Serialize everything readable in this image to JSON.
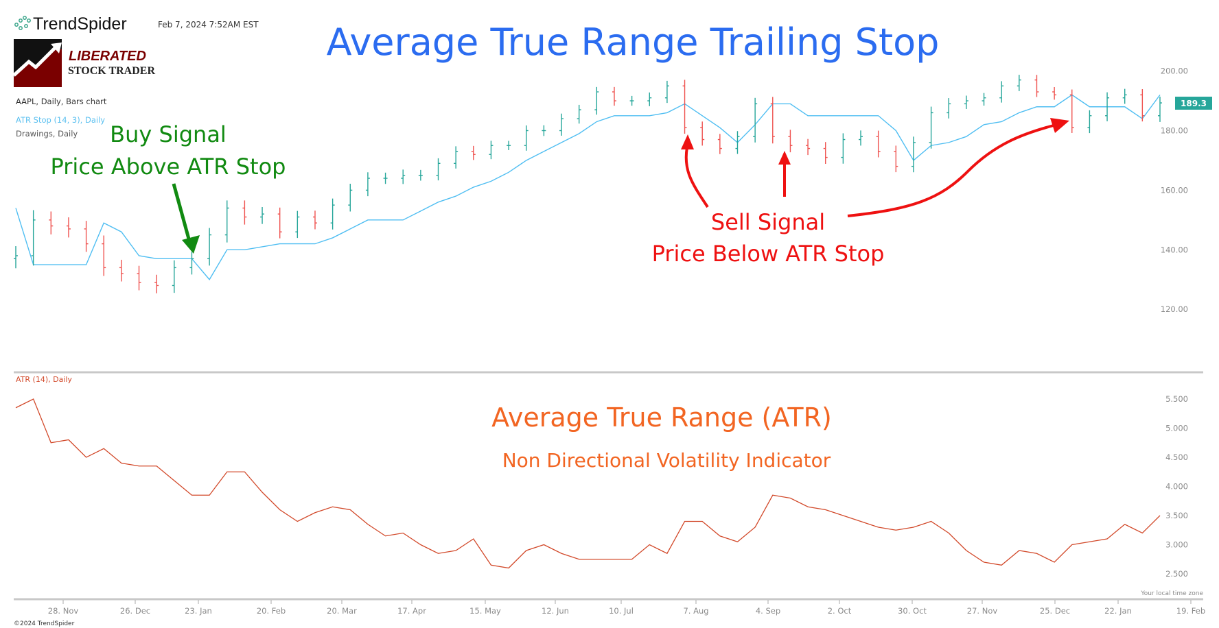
{
  "header": {
    "brand": "TrendSpider",
    "timestamp": "Feb 7, 2024 7:52AM EST",
    "logo_line1": "LIBERATED",
    "logo_line2": "STOCK TRADER",
    "title": "Average True Range Trailing Stop",
    "copyright": "©2024 TrendSpider"
  },
  "legend": {
    "main": "AAPL, Daily, Bars chart",
    "atr_stop": "ATR Stop (14, 3), Daily",
    "drawings": "Drawings, Daily",
    "atr": "ATR (14), Daily"
  },
  "annotations": {
    "buy_title": "Buy Signal",
    "buy_sub": "Price Above ATR Stop",
    "sell_title": "Sell Signal",
    "sell_sub": "Price Below ATR Stop",
    "atr_title": "Average True Range (ATR)",
    "atr_sub": "Non Directional Volatility Indicator"
  },
  "colors": {
    "title": "#2b6cf0",
    "buy": "#118a11",
    "sell": "#ee1111",
    "atr_text": "#f26522",
    "bar_up": "#26a69a",
    "bar_down": "#ef5350",
    "atr_stop": "#4fbef2",
    "atr_line": "#d2492a"
  },
  "chart_data": [
    {
      "type": "bar",
      "name": "AAPL, Daily, Bars chart",
      "note_sampling": "weekly closes",
      "x_tick_labels": [
        "28. Nov",
        "26. Dec",
        "23. Jan",
        "20. Feb",
        "20. Mar",
        "17. Apr",
        "15. May",
        "12. Jun",
        "10. Jul",
        "7. Aug",
        "4. Sep",
        "2. Oct",
        "30. Oct",
        "27. Nov",
        "25. Dec",
        "22. Jan",
        "19. Feb"
      ],
      "y_tick_labels": [
        "200.00",
        "180.00",
        "160.00",
        "140.00",
        "120.00"
      ],
      "ylim": [
        100,
        200
      ],
      "last_price": "189.3",
      "close": [
        138,
        150,
        148,
        147,
        142,
        134,
        132,
        129,
        128,
        134,
        137,
        145,
        154,
        151,
        152,
        146,
        151,
        149,
        155,
        160,
        164,
        164,
        165,
        165,
        169,
        173,
        172,
        175,
        175,
        180,
        180,
        184,
        187,
        193,
        190,
        190,
        191,
        195,
        181,
        177,
        174,
        178,
        189,
        178,
        175,
        174,
        171,
        177,
        178,
        173,
        168,
        176,
        186,
        189,
        190,
        191,
        195,
        197,
        193,
        192,
        181,
        185,
        191,
        192,
        185,
        189.3
      ],
      "atr_stop": [
        154,
        135,
        135,
        135,
        135,
        149,
        146,
        138,
        137,
        137,
        137,
        130,
        140,
        140,
        141,
        142,
        142,
        142,
        144,
        147,
        150,
        150,
        150,
        153,
        156,
        158,
        161,
        163,
        166,
        170,
        173,
        176,
        179,
        183,
        185,
        185,
        185,
        186,
        189,
        185,
        181,
        176,
        182,
        189,
        189,
        185,
        185,
        185,
        185,
        185,
        180,
        170,
        175,
        176,
        178,
        182,
        183,
        186,
        188,
        188,
        192,
        188,
        188,
        188,
        184,
        192
      ]
    },
    {
      "type": "line",
      "name": "ATR (14), Daily",
      "y_tick_labels": [
        "5.500",
        "5.000",
        "4.500",
        "4.000",
        "3.500",
        "3.000",
        "2.500"
      ],
      "ylim": [
        2.3,
        5.8
      ],
      "values": [
        5.35,
        5.5,
        4.75,
        4.8,
        4.5,
        4.65,
        4.4,
        4.35,
        4.35,
        4.1,
        3.85,
        3.85,
        4.25,
        4.25,
        3.9,
        3.6,
        3.4,
        3.55,
        3.65,
        3.6,
        3.35,
        3.15,
        3.2,
        3.0,
        2.85,
        2.9,
        3.1,
        2.65,
        2.6,
        2.9,
        3.0,
        2.85,
        2.75,
        2.75,
        2.75,
        2.75,
        3.0,
        2.85,
        3.4,
        3.4,
        3.15,
        3.05,
        3.3,
        3.85,
        3.8,
        3.65,
        3.6,
        3.5,
        3.4,
        3.3,
        3.25,
        3.3,
        3.4,
        3.2,
        2.9,
        2.7,
        2.65,
        2.9,
        2.85,
        2.7,
        3.0,
        3.05,
        3.1,
        3.35,
        3.2,
        3.5
      ],
      "time_zone_note": "Your local time zone"
    }
  ]
}
